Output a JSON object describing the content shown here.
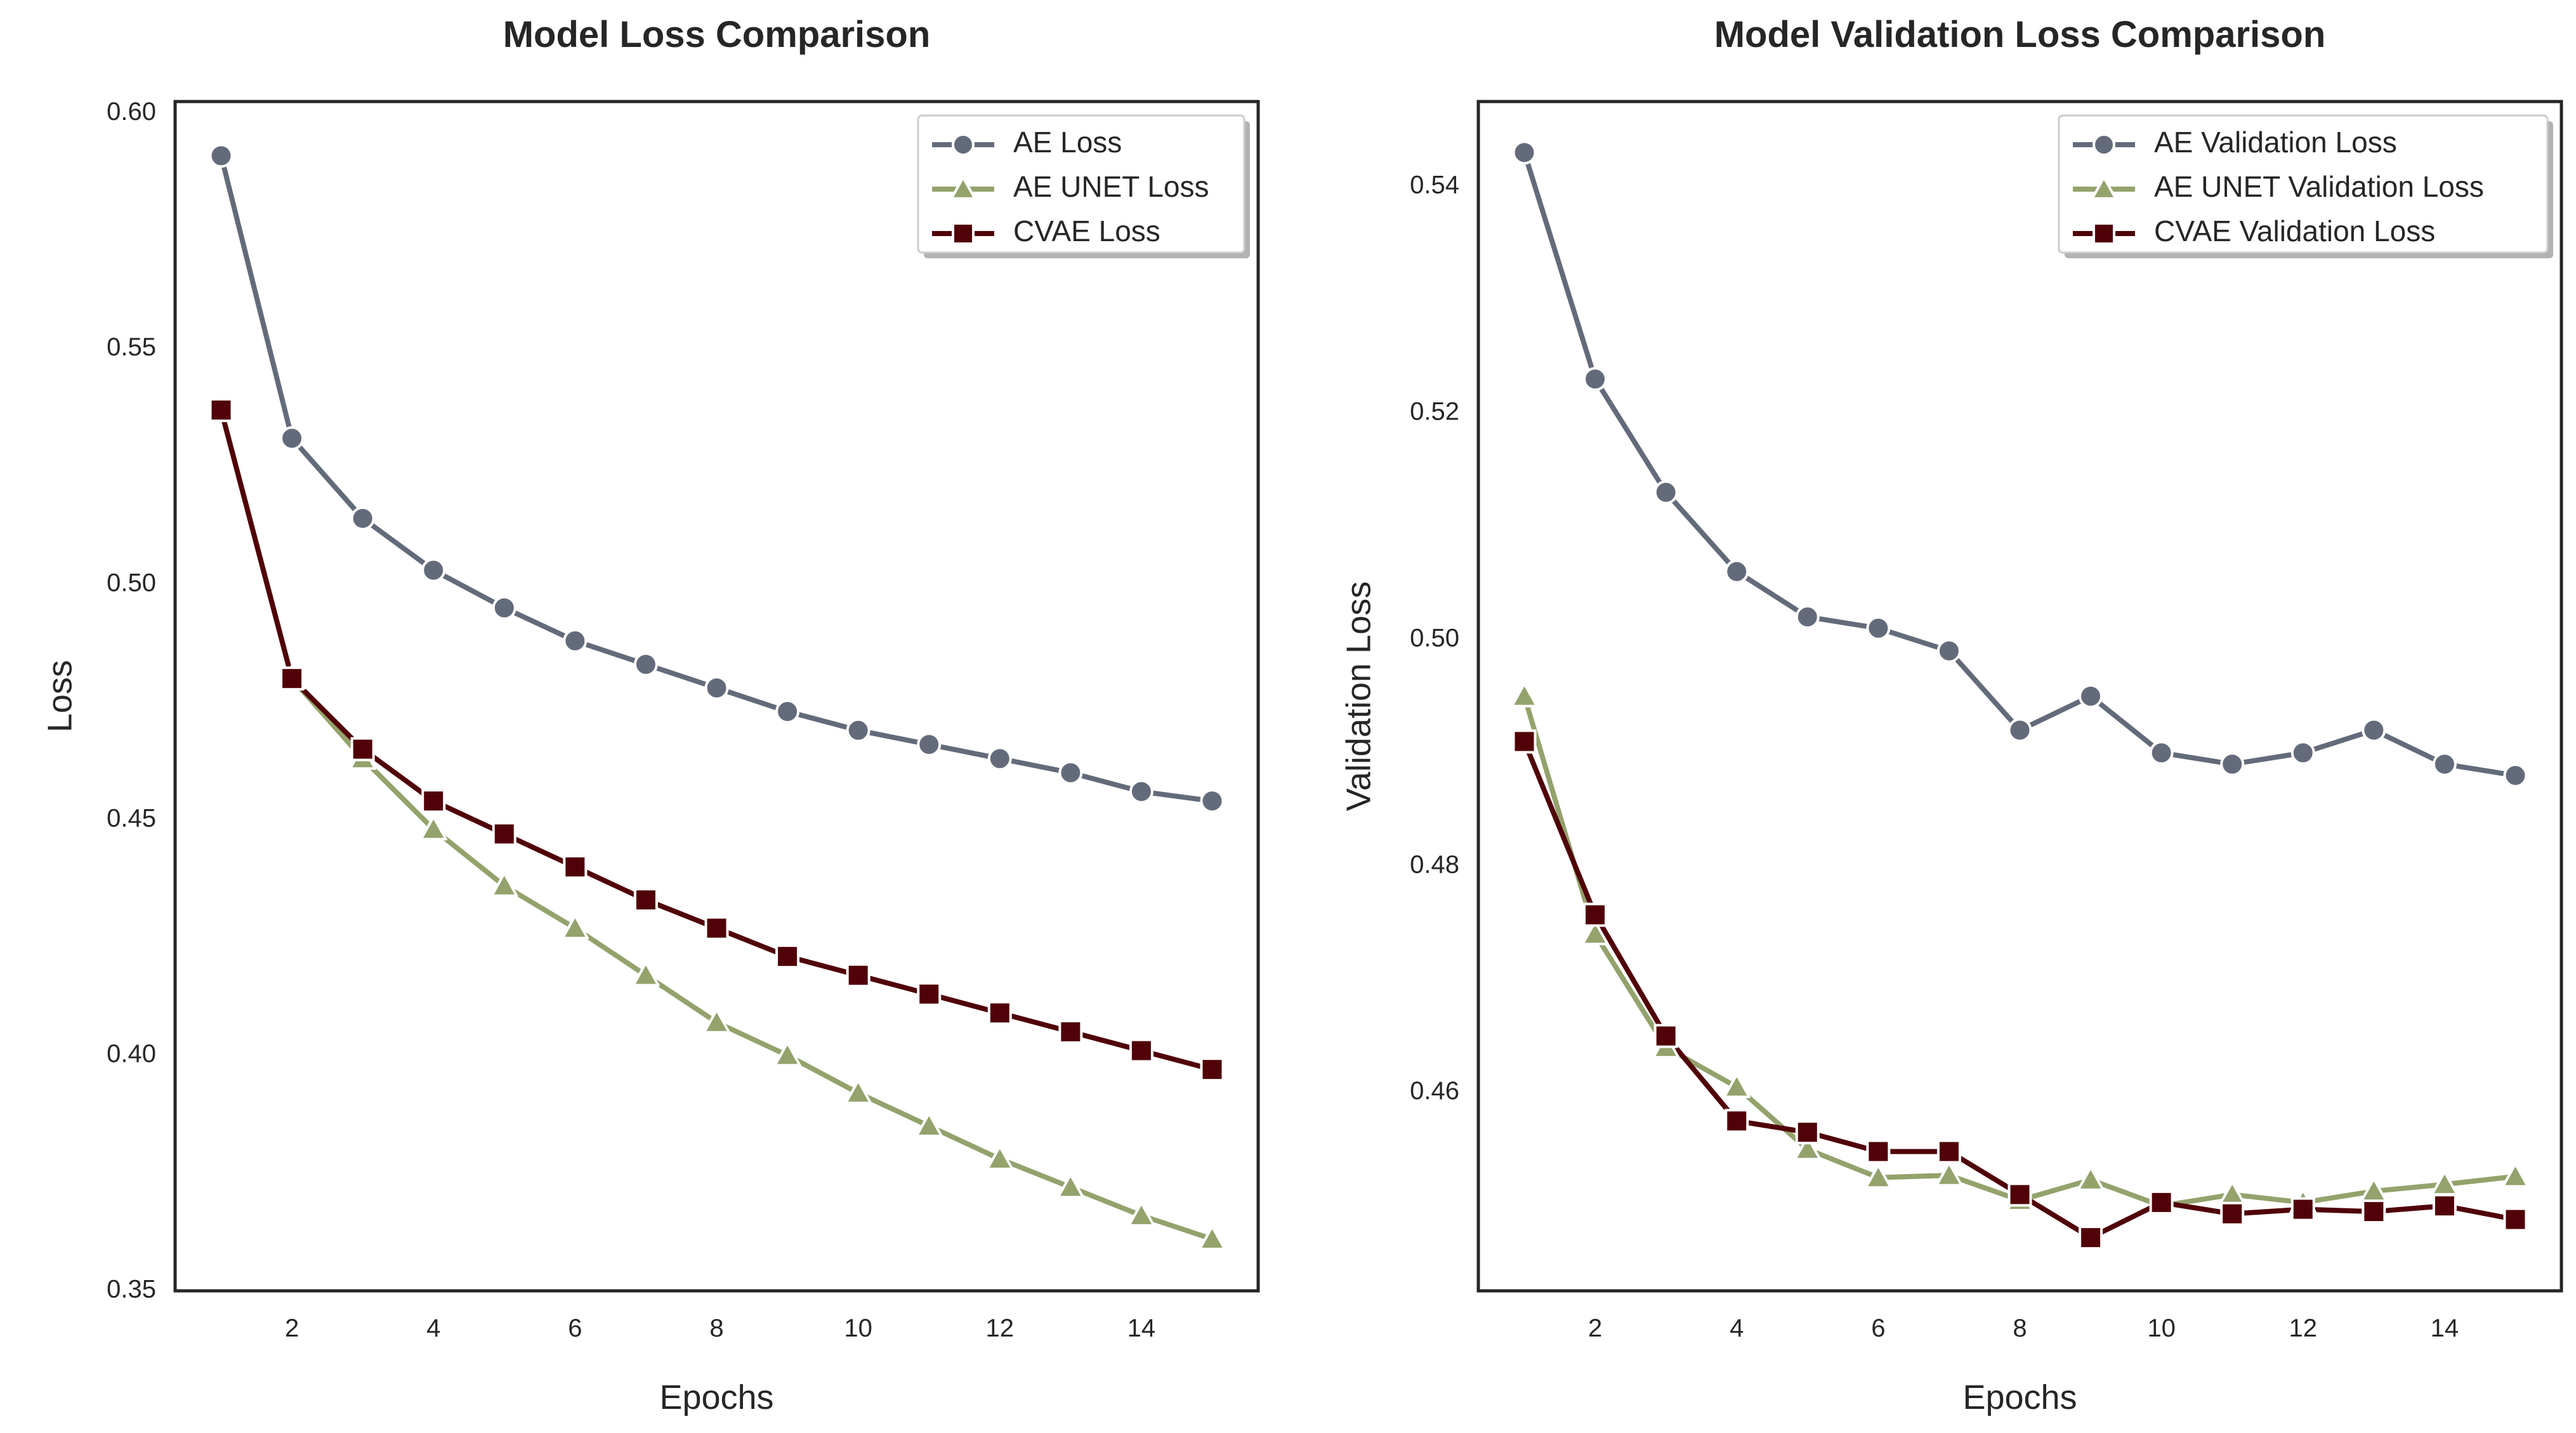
{
  "chart_data": [
    {
      "type": "line",
      "title": "Model Loss Comparison",
      "xlabel": "Epochs",
      "ylabel": "Loss",
      "xlim": [
        0.35,
        15.65
      ],
      "ylim": [
        0.35,
        0.6025
      ],
      "xticks": [
        2,
        4,
        6,
        8,
        10,
        12,
        14
      ],
      "yticks": [
        0.35,
        0.4,
        0.45,
        0.5,
        0.55,
        0.6
      ],
      "ytick_labels": [
        "0.35",
        "0.40",
        "0.45",
        "0.50",
        "0.55",
        "0.60"
      ],
      "grid": false,
      "legend": "top-right",
      "x": [
        1,
        2,
        3,
        4,
        5,
        6,
        7,
        8,
        9,
        10,
        11,
        12,
        13,
        14,
        15
      ],
      "series": [
        {
          "name": "AE Loss",
          "color": "#636b7b",
          "marker": "circle",
          "values": [
            0.591,
            0.531,
            0.514,
            0.503,
            0.495,
            0.488,
            0.483,
            0.478,
            0.473,
            0.469,
            0.466,
            0.463,
            0.46,
            0.456,
            0.454
          ]
        },
        {
          "name": "AE UNET Loss",
          "color": "#94a26c",
          "marker": "triangle",
          "values": [
            0.537,
            0.48,
            0.463,
            0.448,
            0.436,
            0.427,
            0.417,
            0.407,
            0.4,
            0.392,
            0.385,
            0.378,
            0.372,
            0.366,
            0.361
          ]
        },
        {
          "name": "CVAE Loss",
          "color": "#500208",
          "marker": "square",
          "values": [
            0.537,
            0.48,
            0.465,
            0.454,
            0.447,
            0.44,
            0.433,
            0.427,
            0.421,
            0.417,
            0.413,
            0.409,
            0.405,
            0.401,
            0.397
          ]
        }
      ]
    },
    {
      "type": "line",
      "title": "Model Validation Loss Comparison",
      "xlabel": "Epochs",
      "ylabel": "Validation Loss",
      "xlim": [
        0.35,
        15.65
      ],
      "ylim": [
        0.4425,
        0.5475
      ],
      "xticks": [
        2,
        4,
        6,
        8,
        10,
        12,
        14
      ],
      "yticks": [
        0.46,
        0.48,
        0.5,
        0.52,
        0.54
      ],
      "ytick_labels": [
        "0.46",
        "0.48",
        "0.50",
        "0.52",
        "0.54"
      ],
      "grid": false,
      "legend": "top-right",
      "x": [
        1,
        2,
        3,
        4,
        5,
        6,
        7,
        8,
        9,
        10,
        11,
        12,
        13,
        14,
        15
      ],
      "series": [
        {
          "name": "AE Validation Loss",
          "color": "#636b7b",
          "marker": "circle",
          "values": [
            0.543,
            0.523,
            0.513,
            0.506,
            0.502,
            0.501,
            0.499,
            0.492,
            0.495,
            0.49,
            0.489,
            0.49,
            0.492,
            0.489,
            0.488
          ]
        },
        {
          "name": "AE UNET Validation Loss",
          "color": "#94a26c",
          "marker": "triangle",
          "values": [
            0.495,
            0.474,
            0.464,
            0.4605,
            0.455,
            0.4525,
            0.4527,
            0.4505,
            0.4523,
            0.45,
            0.451,
            0.4503,
            0.4513,
            0.4519,
            0.4526
          ]
        },
        {
          "name": "CVAE Validation Loss",
          "color": "#500208",
          "marker": "square",
          "values": [
            0.491,
            0.4757,
            0.465,
            0.4575,
            0.4565,
            0.4548,
            0.4548,
            0.451,
            0.4472,
            0.4503,
            0.4493,
            0.4497,
            0.4495,
            0.45,
            0.4488
          ]
        }
      ]
    }
  ]
}
